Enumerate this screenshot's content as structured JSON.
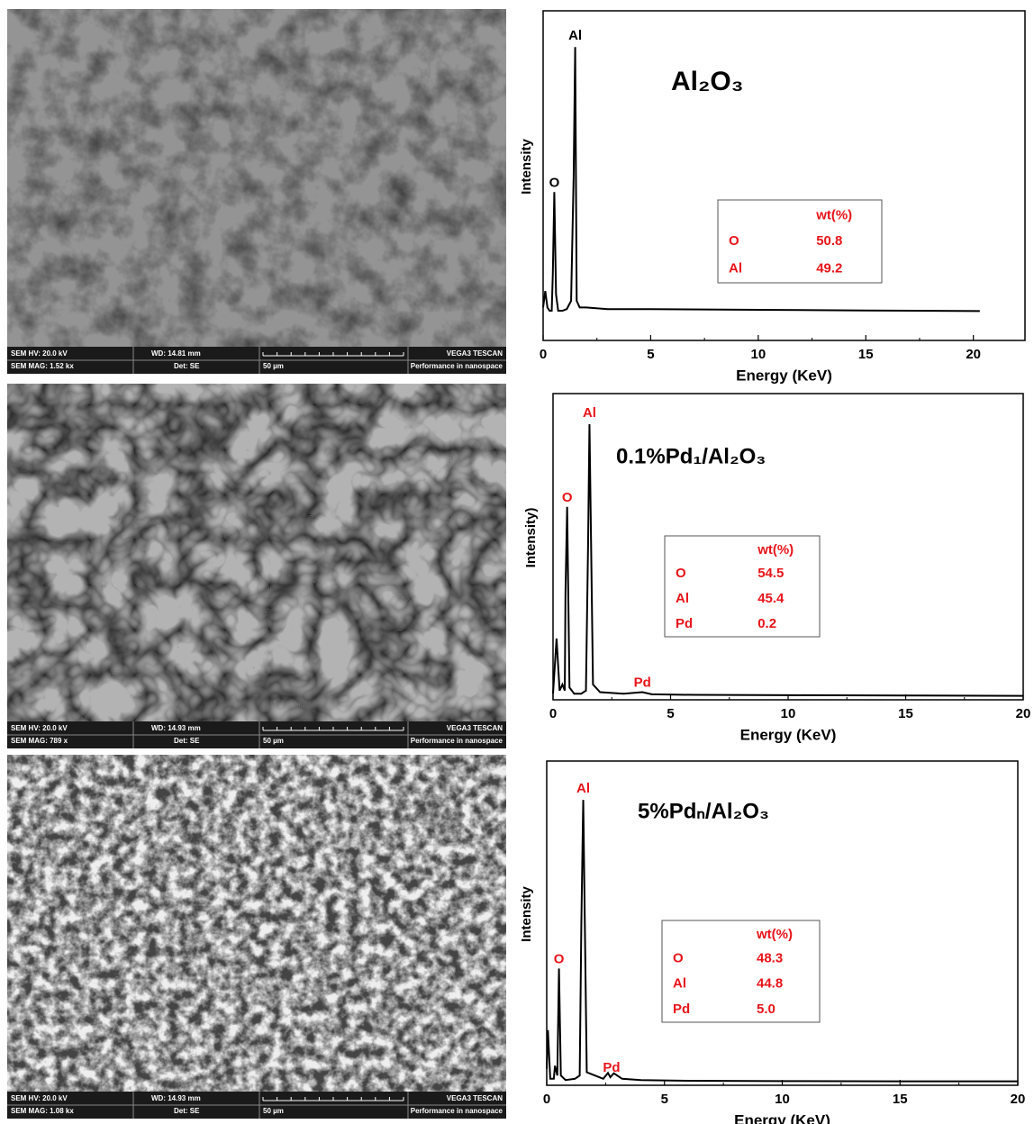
{
  "sem_images": [
    {
      "hv": "SEM HV: 20.0 kV",
      "wd": "WD: 14.81 mm",
      "brand": "VEGA3 TESCAN",
      "mag": "SEM MAG: 1.52 kx",
      "det": "Det: SE",
      "scale": "50 µm",
      "tagline": "Performance in nanospace"
    },
    {
      "hv": "SEM HV: 20.0 kV",
      "wd": "WD: 14.93 mm",
      "brand": "VEGA3 TESCAN",
      "mag": "SEM MAG: 789 x",
      "det": "Det: SE",
      "scale": "50 µm",
      "tagline": "Performance in nanospace"
    },
    {
      "hv": "SEM HV: 20.0 kV",
      "wd": "WD: 14.93 mm",
      "brand": "VEGA3 TESCAN",
      "mag": "SEM MAG: 1.08 kx",
      "det": "Det: SE",
      "scale": "50 µm",
      "tagline": "Performance in nanospace"
    }
  ],
  "chart_data": [
    {
      "type": "line",
      "title": "Al₂O₃",
      "x_label": "Energy (KeV)",
      "y_label": "Intensity",
      "color": "#000000",
      "x": [
        0,
        0.1,
        0.2,
        0.3,
        0.4,
        0.45,
        0.52,
        0.6,
        0.7,
        0.9,
        1.1,
        1.3,
        1.42,
        1.49,
        1.56,
        1.7,
        2,
        3,
        5,
        10,
        15,
        20.3
      ],
      "values": [
        10,
        15,
        10,
        9,
        9,
        20,
        45,
        14,
        9,
        9,
        9.5,
        12,
        50,
        89,
        12,
        10,
        10,
        9.5,
        9.5,
        9.3,
        9.1,
        8.9
      ],
      "xlim": [
        0,
        22.4
      ],
      "xticks": [
        0,
        5,
        10,
        15,
        20
      ],
      "ylim": [
        0,
        100
      ],
      "peak_labels": [
        "Al",
        "O"
      ],
      "peak_label_color": "#000000",
      "table": {
        "header": "wt(%)",
        "rows": [
          [
            "O",
            "50.8"
          ],
          [
            "Al",
            "49.2"
          ]
        ],
        "color": "#e8141a"
      }
    },
    {
      "type": "line",
      "title": "0.1%Pd₁/Al₂O₃",
      "x_label": "Energy (KeV)",
      "y_label": "Intensity)",
      "color": "#000000",
      "x": [
        0,
        0.15,
        0.28,
        0.4,
        0.5,
        0.53,
        0.6,
        0.7,
        0.9,
        1.2,
        1.4,
        1.49,
        1.55,
        1.7,
        2,
        3,
        3.8,
        4.2,
        6,
        10,
        15,
        20
      ],
      "values": [
        2,
        20,
        3,
        5,
        3,
        35,
        63,
        4,
        2,
        2,
        3,
        50,
        90,
        5,
        2.5,
        2,
        2.5,
        1.8,
        1.6,
        1.5,
        1.4,
        1.3
      ],
      "xlim": [
        0,
        20
      ],
      "xticks": [
        0,
        5,
        10,
        15,
        20
      ],
      "ylim": [
        0,
        100
      ],
      "peak_labels": [
        "Al",
        "O",
        "Pd"
      ],
      "peak_label_color": "#e8141a",
      "table": {
        "header": "wt(%)",
        "rows": [
          [
            "O",
            "54.5"
          ],
          [
            "Al",
            "45.4"
          ],
          [
            "Pd",
            "0.2"
          ]
        ],
        "color": "#e8141a"
      }
    },
    {
      "type": "line",
      "title": "5%Pdₙ/Al₂O₃",
      "x_label": "Energy (KeV)",
      "y_label": "Intensity",
      "color": "#000000",
      "x": [
        0,
        0.05,
        0.15,
        0.3,
        0.35,
        0.45,
        0.52,
        0.6,
        0.8,
        1.2,
        1.4,
        1.47,
        1.55,
        1.7,
        2.4,
        2.6,
        2.7,
        2.85,
        3.2,
        4,
        6,
        10,
        15,
        20
      ],
      "values": [
        5,
        17,
        2,
        2,
        6,
        3,
        36,
        3,
        1.6,
        2,
        3,
        50,
        88,
        4,
        2,
        3.8,
        2.5,
        3.7,
        2,
        1.6,
        1.4,
        1.3,
        1.2,
        1.2
      ],
      "xlim": [
        0,
        20
      ],
      "xticks": [
        0,
        5,
        10,
        15,
        20
      ],
      "ylim": [
        0,
        100
      ],
      "peak_labels": [
        "Al",
        "O",
        "Pd"
      ],
      "peak_label_color": "#e8141a",
      "table": {
        "header": "wt(%)",
        "rows": [
          [
            "O",
            "48.3"
          ],
          [
            "Al",
            "44.8"
          ],
          [
            "Pd",
            "5.0"
          ]
        ],
        "color": "#e8141a"
      }
    }
  ]
}
